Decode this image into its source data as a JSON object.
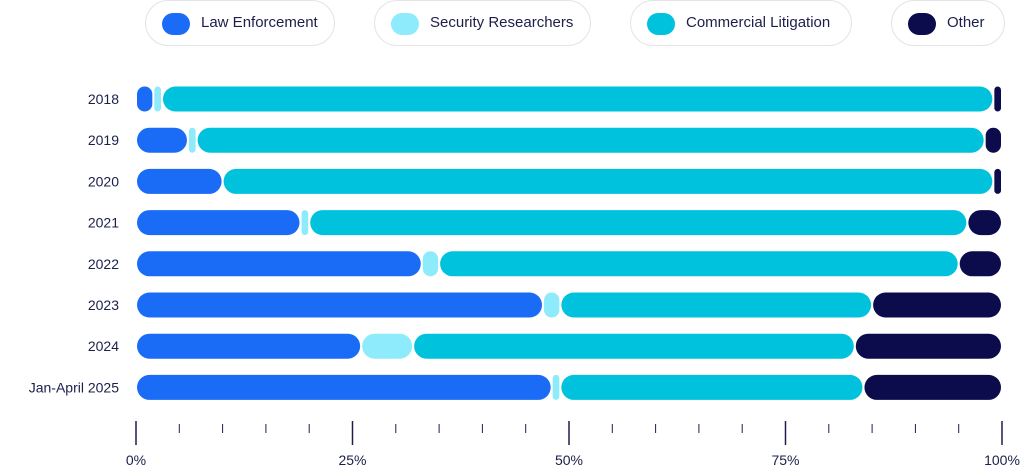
{
  "chart_data": {
    "type": "bar",
    "orientation": "horizontal",
    "stacked": true,
    "percent": true,
    "categories": [
      "2018",
      "2019",
      "2020",
      "2021",
      "2022",
      "2023",
      "2024",
      "Jan-April 2025"
    ],
    "series": [
      {
        "name": "Law Enforcement",
        "color": "#1a6cf7",
        "values": [
          2,
          6,
          10,
          19,
          33,
          47,
          26,
          48
        ]
      },
      {
        "name": "Security Researchers",
        "color": "#8eebfb",
        "values": [
          1,
          1,
          0,
          1,
          2,
          2,
          6,
          1
        ]
      },
      {
        "name": "Commercial Litigation",
        "color": "#00c2dd",
        "values": [
          96,
          91,
          89,
          76,
          60,
          36,
          51,
          35
        ]
      },
      {
        "name": "Other",
        "color": "#0c0c4d",
        "values": [
          1,
          2,
          1,
          4,
          5,
          15,
          17,
          16
        ]
      }
    ],
    "xlim": [
      0,
      100
    ],
    "x_ticks": [
      "0%",
      "25%",
      "50%",
      "75%",
      "100%"
    ],
    "x_minor_step": 5,
    "legend_position": "top",
    "grid": false
  }
}
